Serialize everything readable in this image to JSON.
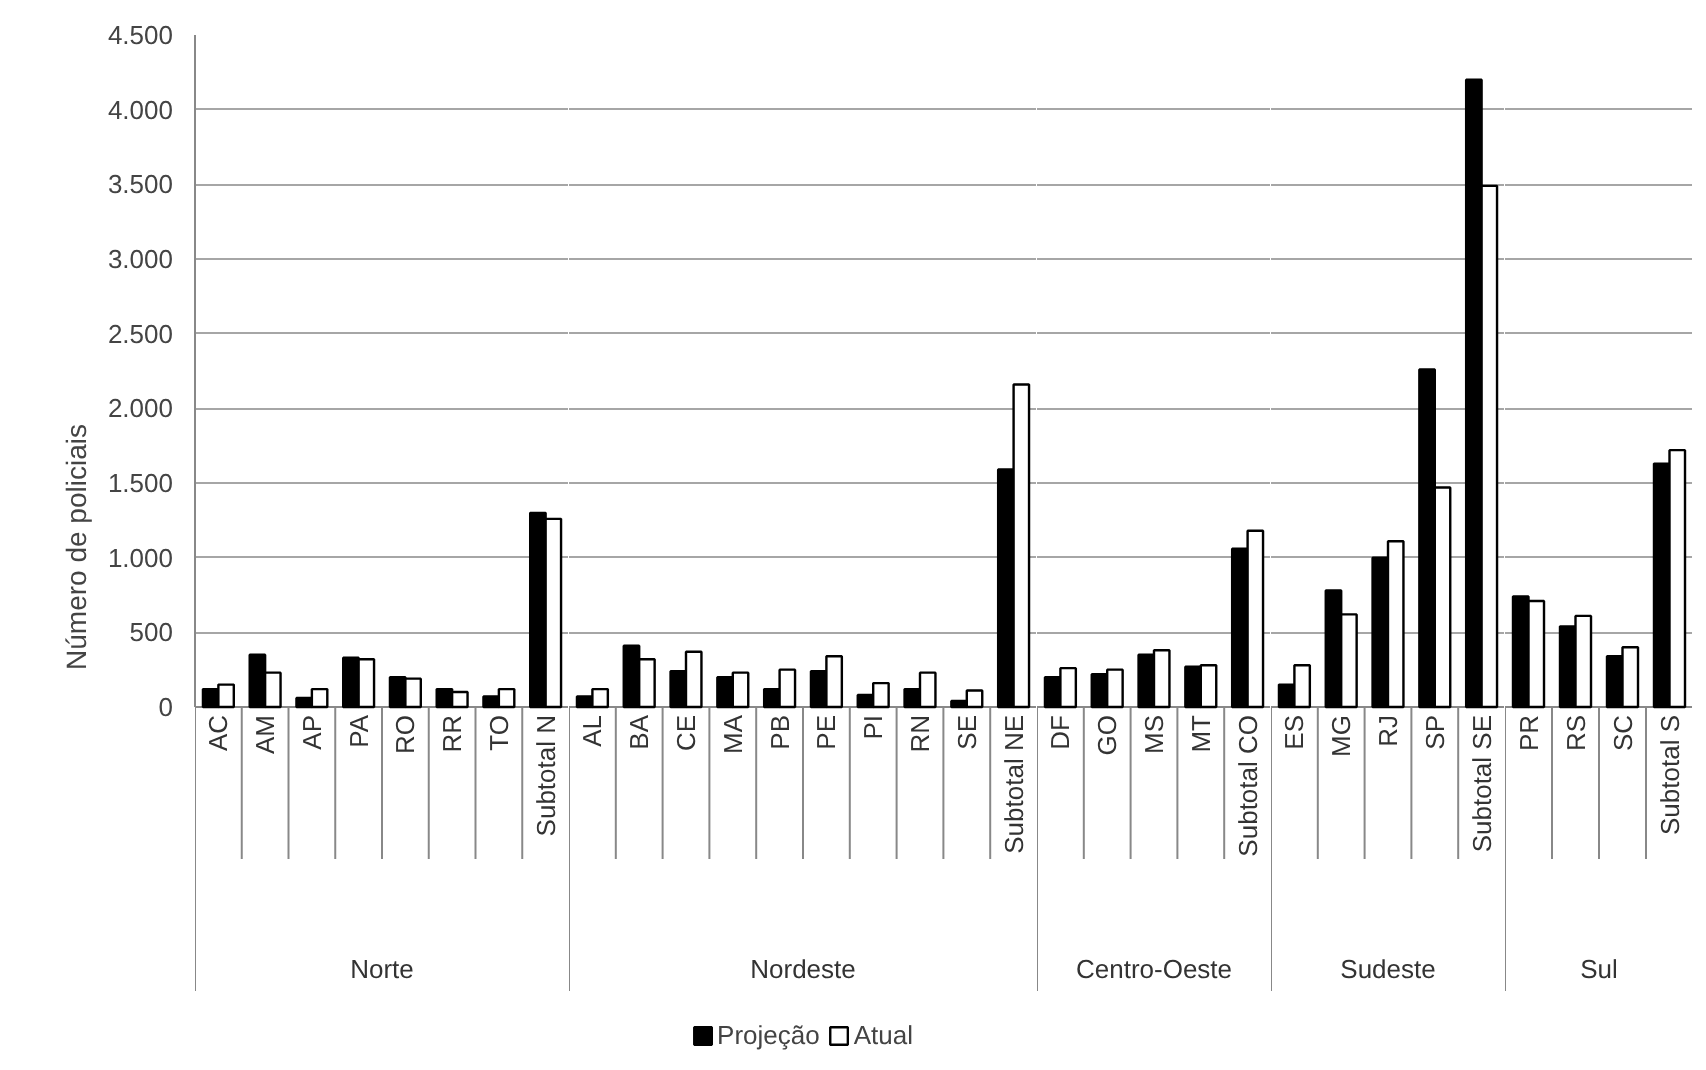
{
  "chart_data": [
    {
      "type": "bar",
      "ylabel": "Número de policiais",
      "xlabel": "Norte",
      "categories": [
        "AC",
        "AM",
        "AP",
        "PA",
        "RO",
        "RR",
        "TO",
        "Subtotal N"
      ],
      "series": [
        {
          "color": "#000000",
          "values": [
            120,
            350,
            60,
            330,
            200,
            120,
            70,
            1300
          ]
        },
        {
          "color": "#ffffff",
          "values": [
            150,
            230,
            120,
            320,
            190,
            100,
            120,
            1260
          ]
        }
      ],
      "ylim": [
        0,
        4500
      ],
      "yticks": [
        0,
        500,
        {
          "value": 1000,
          "label": "1.000"
        },
        {
          "value": 1500,
          "label": "1.500"
        },
        {
          "value": 2000,
          "label": "2.000"
        },
        {
          "value": 2500,
          "label": "2.500"
        },
        {
          "value": 3000,
          "label": "3.000"
        },
        {
          "value": 3500,
          "label": "3.500"
        },
        {
          "value": 4000,
          "label": "4.000"
        },
        {
          "value": 4500,
          "label": "4.500"
        }
      ],
      "grid": "y"
    },
    {
      "type": "bar",
      "xlabel": "Nordeste",
      "categories": [
        "AL",
        "BA",
        "CE",
        "MA",
        "PB",
        "PE",
        "PI",
        "RN",
        "SE",
        "Subtotal NE"
      ],
      "series": [
        {
          "name": "Projeção",
          "color": "#000000",
          "values": [
            70,
            410,
            240,
            200,
            120,
            240,
            80,
            120,
            40,
            1590
          ]
        },
        {
          "name": "Atual",
          "color": "#ffffff",
          "values": [
            120,
            320,
            370,
            230,
            250,
            340,
            160,
            230,
            110,
            2160
          ]
        }
      ],
      "ylim": [
        0,
        4500
      ],
      "yticks": [
        0,
        500,
        1000,
        1500,
        2000,
        2500,
        3000,
        3500,
        4000,
        4500
      ],
      "tick_labels": "x",
      "grid": "y",
      "legend": "bottom"
    },
    {
      "type": "bar",
      "xlabel": "Centro-Oeste",
      "categories": [
        "DF",
        "GO",
        "MS",
        "MT",
        "Subtotal CO"
      ],
      "series": [
        {
          "color": "#000000",
          "values": [
            200,
            220,
            350,
            270,
            1060
          ]
        },
        {
          "color": "#ffffff",
          "values": [
            260,
            250,
            380,
            280,
            1180
          ]
        }
      ],
      "ylim": [
        0,
        4500
      ],
      "yticks": [
        0,
        500,
        1000,
        1500,
        2000,
        2500,
        3000,
        3500,
        4000,
        4500
      ],
      "tick_labels": "x",
      "grid": "y"
    },
    {
      "type": "bar",
      "xlabel": "Sudeste",
      "categories": [
        "ES",
        "MG",
        "RJ",
        "SP",
        "Subtotal SE"
      ],
      "series": [
        {
          "color": "#000000",
          "values": [
            150,
            780,
            1000,
            2260,
            4200
          ]
        },
        {
          "color": "#ffffff",
          "values": [
            280,
            620,
            1110,
            1470,
            3490
          ]
        }
      ],
      "ylim": [
        0,
        4500
      ],
      "yticks": [
        0,
        500,
        1000,
        1500,
        2000,
        2500,
        3000,
        3500,
        4000,
        4500
      ],
      "tick_labels": "x",
      "grid": "y"
    },
    {
      "type": "bar",
      "xlabel": "Sul",
      "categories": [
        "PR",
        "RS",
        "SC",
        "Subtotal S"
      ],
      "series": [
        {
          "color": "#000000",
          "values": [
            740,
            540,
            340,
            1630
          ]
        },
        {
          "color": "#ffffff",
          "values": [
            710,
            610,
            400,
            1720
          ]
        }
      ],
      "ylim": [
        0,
        4500
      ],
      "yticks": [
        0,
        500,
        1000,
        1500,
        2000,
        2500,
        3000,
        3500,
        4000,
        4500
      ],
      "tick_labels": "x",
      "grid": "y"
    }
  ]
}
